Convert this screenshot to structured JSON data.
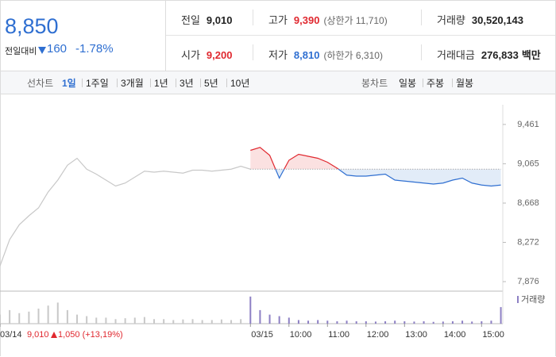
{
  "summary": {
    "price": "8,850",
    "change_label": "전일대비",
    "change": "160",
    "change_rate": "-1.78%"
  },
  "stats": [
    {
      "label": "전일",
      "value": "9,010",
      "color": "#222222"
    },
    {
      "label": "고가",
      "value": "9,390",
      "note": "(상한가 11,710)",
      "color": "#e0282f"
    },
    {
      "label": "거래량",
      "value": "30,520,143",
      "color": "#222222"
    },
    {
      "label": "시가",
      "value": "9,200",
      "color": "#e0282f"
    },
    {
      "label": "저가",
      "value": "8,810",
      "note": "(하한가 6,310)",
      "color": "#2f6fd1"
    },
    {
      "label": "거래대금",
      "value": "276,833",
      "unit": "백만",
      "color": "#222222"
    }
  ],
  "tabs": {
    "line_label": "선차트",
    "line": [
      "1일",
      "1주일",
      "3개월",
      "1년",
      "3년",
      "5년",
      "10년"
    ],
    "active_line_tab": 0,
    "candle_label": "봉차트",
    "candle": [
      "일봉",
      "주봉",
      "월봉"
    ]
  },
  "footer": {
    "close": "9,010",
    "change": "1,050 (+13,19%)"
  },
  "chart_data": {
    "type": "line",
    "xlim": [
      0,
      783
    ],
    "xticks": [
      {
        "value": 0,
        "label": "03/14"
      },
      {
        "value": 390,
        "label": "03/15"
      },
      {
        "value": 450,
        "label": "10:00"
      },
      {
        "value": 510,
        "label": "11:00"
      },
      {
        "value": 570,
        "label": "12:00"
      },
      {
        "value": 630,
        "label": "13:00"
      },
      {
        "value": 690,
        "label": "14:00"
      },
      {
        "value": 750,
        "label": "15:00"
      }
    ],
    "ylim": [
      7780,
      9620
    ],
    "yticks": [
      {
        "value": 9461,
        "label": "9,461"
      },
      {
        "value": 9065,
        "label": "9,065"
      },
      {
        "value": 8668,
        "label": "8,668"
      },
      {
        "value": 8272,
        "label": "8,272"
      },
      {
        "value": 7876,
        "label": "7,876"
      }
    ],
    "prev_close": 9010,
    "up_color": "#e0282f",
    "down_color": "#2f6fd1",
    "up_fill": "#fbe1e1",
    "down_fill": "#e2ecf8",
    "series": [
      {
        "color": "#c8c8c8",
        "x": [
          0,
          15,
          30,
          45,
          60,
          75,
          90,
          105,
          120,
          135,
          150,
          165,
          180,
          195,
          210,
          225,
          240,
          255,
          270,
          285,
          300,
          315,
          330,
          345,
          360,
          375,
          390
        ],
        "values": [
          8035,
          8300,
          8450,
          8540,
          8620,
          8780,
          8900,
          9050,
          9120,
          9010,
          8960,
          8900,
          8840,
          8870,
          8930,
          8990,
          8980,
          8990,
          8980,
          8970,
          9000,
          9000,
          8990,
          9000,
          9010,
          9040,
          9010
        ]
      },
      {
        "split": true,
        "x": [
          390,
          405,
          420,
          435,
          450,
          465,
          480,
          495,
          510,
          525,
          540,
          555,
          570,
          585,
          600,
          615,
          630,
          645,
          660,
          675,
          690,
          705,
          720,
          735,
          750,
          765,
          780
        ],
        "values": [
          9200,
          9230,
          9150,
          8920,
          9100,
          9160,
          9140,
          9120,
          9080,
          9020,
          8950,
          8940,
          8940,
          8950,
          8960,
          8900,
          8890,
          8880,
          8870,
          8860,
          8870,
          8900,
          8920,
          8870,
          8850,
          8840,
          8850
        ]
      }
    ],
    "volume": {
      "name": "거래량",
      "ylim": [
        0,
        100
      ],
      "x": [
        0,
        15,
        30,
        45,
        60,
        75,
        90,
        105,
        120,
        135,
        150,
        165,
        180,
        195,
        210,
        225,
        240,
        255,
        270,
        285,
        300,
        315,
        330,
        345,
        360,
        375,
        390,
        405,
        420,
        435,
        450,
        465,
        480,
        495,
        510,
        525,
        540,
        555,
        570,
        585,
        600,
        615,
        630,
        645,
        660,
        675,
        690,
        705,
        720,
        735,
        750,
        765,
        780
      ],
      "colors": [
        "#c8c8c8",
        "#8d80c4"
      ],
      "values": [
        30,
        45,
        35,
        40,
        50,
        60,
        70,
        45,
        30,
        25,
        20,
        20,
        15,
        18,
        20,
        22,
        15,
        15,
        12,
        14,
        15,
        12,
        12,
        14,
        12,
        15,
        90,
        45,
        30,
        25,
        20,
        12,
        10,
        12,
        10,
        8,
        10,
        8,
        8,
        7,
        8,
        10,
        8,
        7,
        8,
        6,
        7,
        8,
        10,
        7,
        8,
        10,
        55
      ]
    }
  }
}
